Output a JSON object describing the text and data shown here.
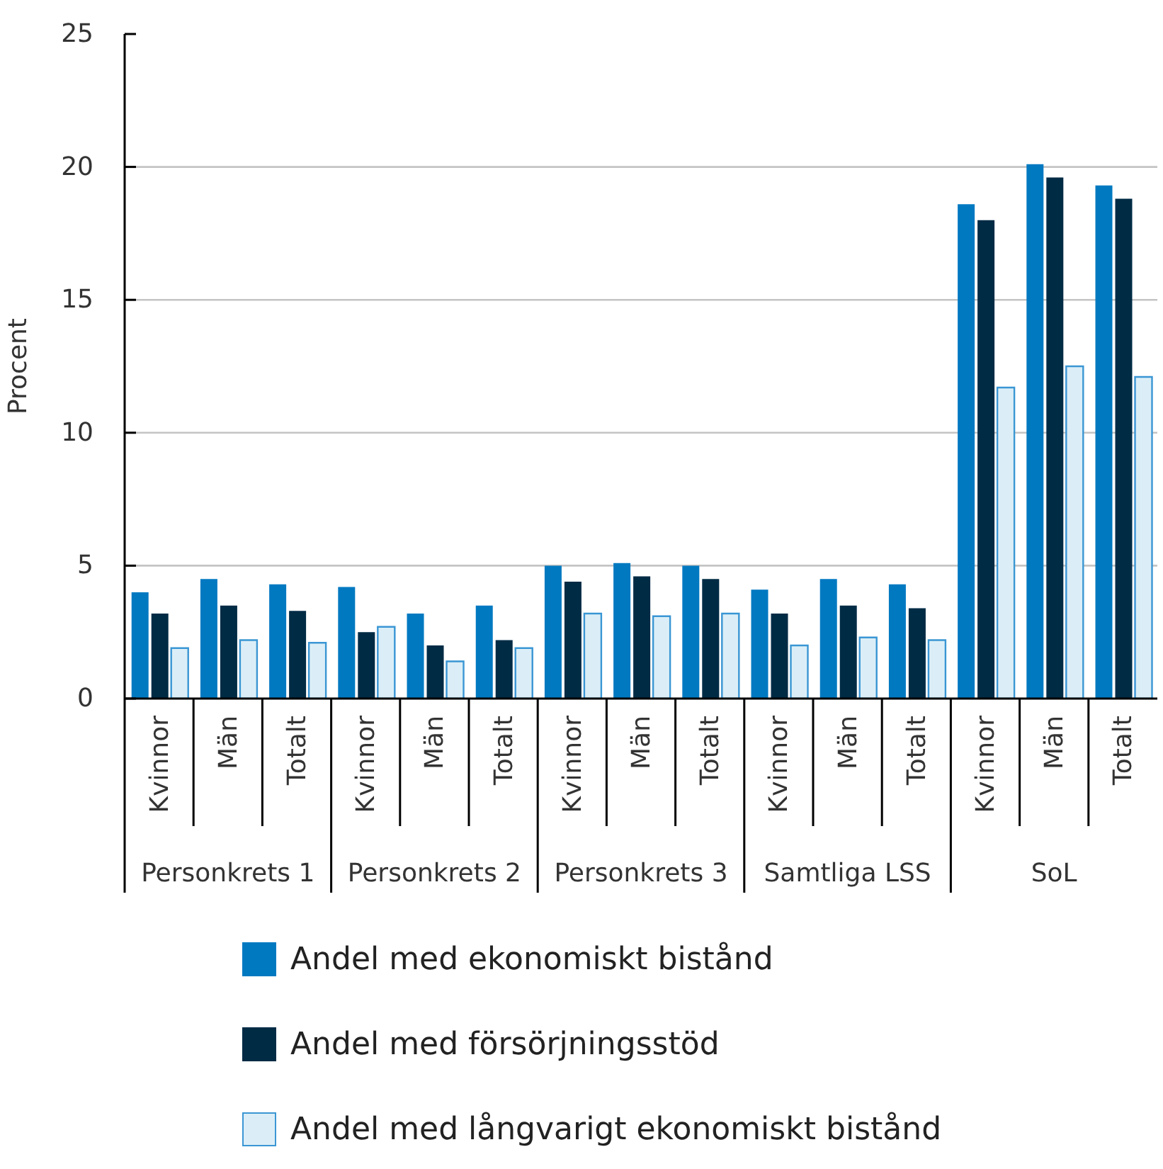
{
  "chart_data": {
    "type": "bar",
    "ylabel": "Procent",
    "categories": [
      "Kvinnor",
      "Män",
      "Totalt",
      "Kvinnor",
      "Män",
      "Totalt",
      "Kvinnor",
      "Män",
      "Totalt",
      "Kvinnor",
      "Män",
      "Totalt",
      "Kvinnor",
      "Män",
      "Totalt"
    ],
    "annotations": [
      "Personkrets 1",
      "Personkrets 2",
      "Personkrets 3",
      "Samtliga LSS",
      "SoL"
    ],
    "series": [
      {
        "name": "Andel med ekonomiskt bistånd",
        "color": "#0079c1",
        "values": [
          4.0,
          4.5,
          4.3,
          4.2,
          3.2,
          3.5,
          5.0,
          5.1,
          5.0,
          4.1,
          4.5,
          4.3,
          18.6,
          20.1,
          19.3
        ]
      },
      {
        "name": "Andel med försörjningsstöd",
        "color": "#002b45",
        "values": [
          3.2,
          3.5,
          3.3,
          2.5,
          2.0,
          2.2,
          4.4,
          4.6,
          4.5,
          3.2,
          3.5,
          3.4,
          18.0,
          19.6,
          18.8
        ]
      },
      {
        "name": "Andel med långvarigt ekonomiskt bistånd",
        "color": "#dbeef7",
        "values": [
          1.9,
          2.2,
          2.1,
          2.7,
          1.4,
          1.9,
          3.2,
          3.1,
          3.2,
          2.0,
          2.3,
          2.2,
          11.7,
          12.5,
          12.1
        ]
      }
    ],
    "ylim": [
      0,
      25
    ],
    "yticks": [
      0,
      5,
      10,
      15,
      20,
      25
    ],
    "grid": "y",
    "legend": "bottom"
  }
}
